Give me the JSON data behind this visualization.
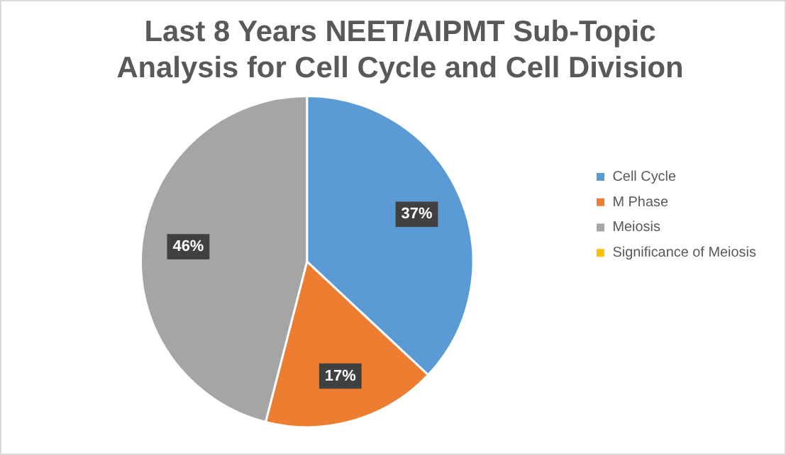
{
  "chart_data": {
    "type": "pie",
    "title": "Last 8 Years NEET/AIPMT Sub-Topic Analysis for Cell Cycle and Cell Division",
    "categories": [
      "Cell Cycle",
      "M Phase",
      "Meiosis",
      "Significance of Meiosis"
    ],
    "values": [
      37,
      17,
      46,
      0
    ],
    "value_labels": [
      "37%",
      "17%",
      "46%",
      null
    ],
    "colors": [
      "#5b9bd5",
      "#ed7d31",
      "#a5a5a5",
      "#ffc000"
    ],
    "legend": "right"
  }
}
